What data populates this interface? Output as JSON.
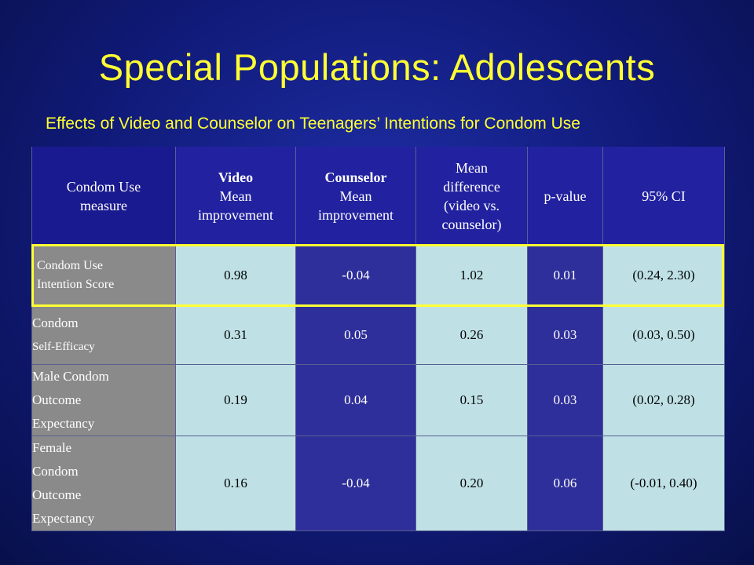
{
  "slide": {
    "title": "Special Populations: Adolescents",
    "subtitle": "Effects of Video and Counselor on Teenagers’ Intentions for Condom Use"
  },
  "table": {
    "headers": {
      "measure_line1": "Condom Use",
      "measure_line2": "measure",
      "video_line1": "Video",
      "video_line2": "Mean",
      "video_line3": "improvement",
      "counselor_line1": "Counselor",
      "counselor_line2": "Mean",
      "counselor_line3": "improvement",
      "diff_line1": "Mean",
      "diff_line2": "difference",
      "diff_line3": "(video vs.",
      "diff_line4": "counselor)",
      "pvalue": "p-value",
      "ci": "95% CI"
    },
    "rows": [
      {
        "label_line1": "Condom Use",
        "label_line2": "Intention Score",
        "video": "0.98",
        "counselor": "-0.04",
        "difference": "1.02",
        "p_value": "0.01",
        "ci": "(0.24, 2.30)"
      },
      {
        "label_line1": "Condom",
        "label_line2": "Self-Efficacy",
        "video": "0.31",
        "counselor": "0.05",
        "difference": "0.26",
        "p_value": "0.03",
        "ci": "(0.03, 0.50)"
      },
      {
        "label_line1": "Male Condom",
        "label_line2": "Outcome",
        "label_line3": "Expectancy",
        "video": "0.19",
        "counselor": "0.04",
        "difference": "0.15",
        "p_value": "0.03",
        "ci": "(0.02, 0.28)"
      },
      {
        "label_line1": "Female",
        "label_line2": "Condom",
        "label_line3": "Outcome",
        "label_line4": "Expectancy",
        "video": "0.16",
        "counselor": "-0.04",
        "difference": "0.20",
        "p_value": "0.06",
        "ci": "(-0.01, 0.40)"
      }
    ]
  },
  "colors": {
    "title": "#ffff33",
    "highlight_border": "#ffff33",
    "header_bg": "#2222a0",
    "label_bg": "#8a8a8a",
    "light_cell": "#bfe1e6",
    "dark_cell": "#2e2f9a"
  }
}
